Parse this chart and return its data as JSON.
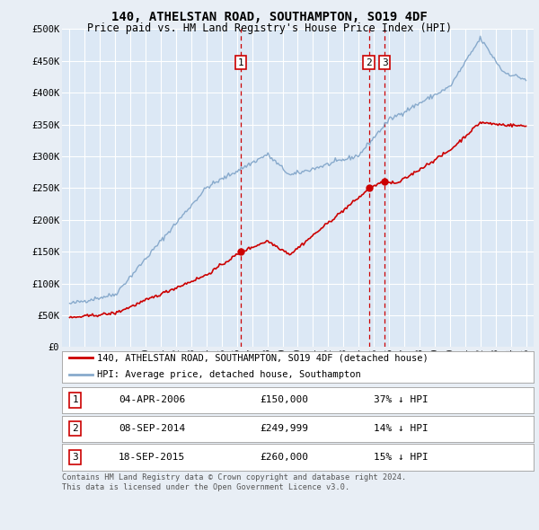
{
  "title": "140, ATHELSTAN ROAD, SOUTHAMPTON, SO19 4DF",
  "subtitle": "Price paid vs. HM Land Registry's House Price Index (HPI)",
  "bg_color": "#e8eef5",
  "plot_bg_color": "#dce8f5",
  "grid_color": "#ffffff",
  "red_line_color": "#cc0000",
  "blue_line_color": "#88aacc",
  "ylim": [
    0,
    500000
  ],
  "yticks": [
    0,
    50000,
    100000,
    150000,
    200000,
    250000,
    300000,
    350000,
    400000,
    450000,
    500000
  ],
  "ytick_labels": [
    "£0",
    "£50K",
    "£100K",
    "£150K",
    "£200K",
    "£250K",
    "£300K",
    "£350K",
    "£400K",
    "£450K",
    "£500K"
  ],
  "x_start_year": 1995,
  "x_end_year": 2025,
  "transactions": [
    {
      "year": 2006.25,
      "price": 150000,
      "label": "1"
    },
    {
      "year": 2014.67,
      "price": 249999,
      "label": "2"
    },
    {
      "year": 2015.71,
      "price": 260000,
      "label": "3"
    }
  ],
  "vline_color": "#cc0000",
  "legend_entries": [
    "140, ATHELSTAN ROAD, SOUTHAMPTON, SO19 4DF (detached house)",
    "HPI: Average price, detached house, Southampton"
  ],
  "table_rows": [
    [
      "1",
      "04-APR-2006",
      "£150,000",
      "37% ↓ HPI"
    ],
    [
      "2",
      "08-SEP-2014",
      "£249,999",
      "14% ↓ HPI"
    ],
    [
      "3",
      "18-SEP-2015",
      "£260,000",
      "15% ↓ HPI"
    ]
  ],
  "footer": "Contains HM Land Registry data © Crown copyright and database right 2024.\nThis data is licensed under the Open Government Licence v3.0."
}
